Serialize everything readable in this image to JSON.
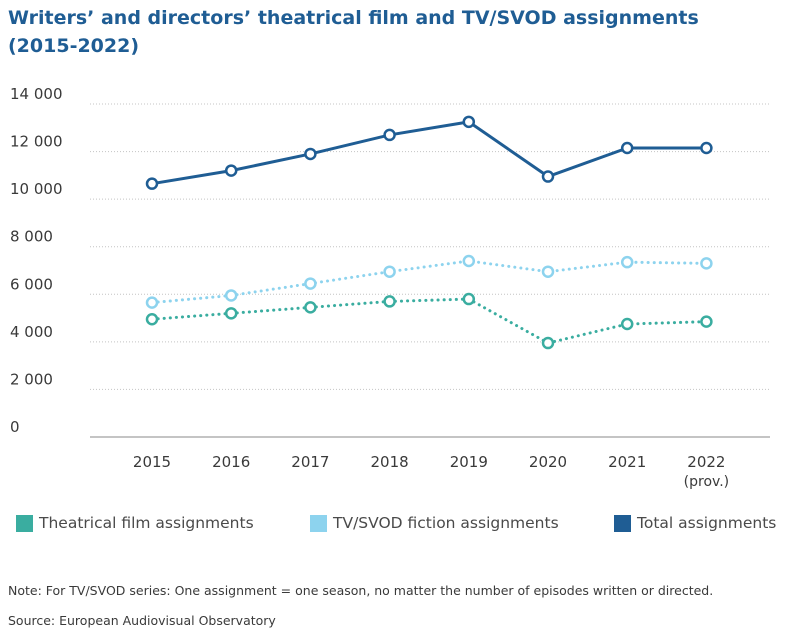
{
  "title": {
    "line1": "Writers’ and directors’ theatrical film and TV/SVOD assignments",
    "line2": "(2015-2022)"
  },
  "chart_data": {
    "type": "line",
    "categories": [
      "2015",
      "2016",
      "2017",
      "2018",
      "2019",
      "2020",
      "2021",
      "2022"
    ],
    "category_sublabels": [
      "",
      "",
      "",
      "",
      "",
      "",
      "",
      "(prov.)"
    ],
    "yticks": [
      "0",
      "2 000",
      "4 000",
      "6 000",
      "8 000",
      "10 000",
      "12 000",
      "14 000"
    ],
    "ylim": [
      0,
      14000
    ],
    "grid": true,
    "legend_position": "bottom",
    "series": [
      {
        "name": "Theatrical film assignments",
        "color": "#3aada0",
        "style": "dotted",
        "values": [
          4950,
          5200,
          5450,
          5700,
          5800,
          3950,
          4750,
          4850
        ]
      },
      {
        "name": "TV/SVOD fiction assignments",
        "color": "#8dd3ee",
        "style": "dotted",
        "values": [
          5650,
          5950,
          6450,
          6950,
          7400,
          6950,
          7350,
          7300
        ]
      },
      {
        "name": "Total assignments",
        "color": "#1f5d94",
        "style": "solid",
        "values": [
          10650,
          11200,
          11900,
          12700,
          13250,
          10950,
          12150,
          12150
        ]
      }
    ]
  },
  "note": "Note: For TV/SVOD series: One assignment = one season, no matter the number of episodes written or directed.",
  "source": "Source: European Audiovisual Observatory"
}
